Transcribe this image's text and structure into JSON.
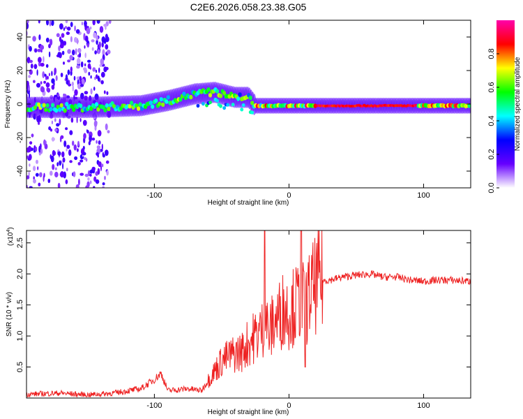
{
  "title": "C2E6.2026.058.23.38.G05",
  "chart_data": [
    {
      "type": "heatmap",
      "xlabel": "Height of straight line (km)",
      "ylabel": "Frequency (Hz)",
      "xlim": [
        -195,
        135
      ],
      "ylim": [
        -50,
        50
      ],
      "xticks": [
        -100,
        0,
        100
      ],
      "xtick_labels": [
        "-100",
        "0",
        "100"
      ],
      "yticks": [
        -40,
        -20,
        0,
        20,
        40
      ],
      "ytick_labels": [
        "-40",
        "-20",
        "0",
        "20",
        "40"
      ],
      "ridge": [
        {
          "x": -195,
          "y": -2
        },
        {
          "x": -150,
          "y": -2
        },
        {
          "x": -110,
          "y": -1
        },
        {
          "x": -90,
          "y": 2
        },
        {
          "x": -70,
          "y": 6
        },
        {
          "x": -55,
          "y": 7
        },
        {
          "x": -40,
          "y": 4
        },
        {
          "x": -30,
          "y": 4
        },
        {
          "x": -25,
          "y": -1
        },
        {
          "x": 0,
          "y": -1
        },
        {
          "x": 60,
          "y": -1
        },
        {
          "x": 135,
          "y": -1
        }
      ],
      "colorbar": {
        "label": "Normalized spectral amplitude",
        "ticks": [
          0.0,
          0.2,
          0.4,
          0.6,
          0.8
        ],
        "tick_labels": [
          "0.0",
          "0.2",
          "0.4",
          "0.6",
          "0.8"
        ],
        "colors": [
          "#ffffff",
          "#6600ff",
          "#0000ff",
          "#00ffff",
          "#00ff00",
          "#ffff00",
          "#ff0000",
          "#ff00aa"
        ]
      }
    },
    {
      "type": "line",
      "xlabel": "Height of straight line (km)",
      "ylabel": "SNR (10 * v/v)",
      "y_multiplier": "(x10",
      "y_multiplier_exp": "4",
      "y_multiplier_close": ")",
      "xlim": [
        -195,
        135
      ],
      "ylim": [
        0,
        2.7
      ],
      "xticks": [
        -100,
        0,
        100
      ],
      "xtick_labels": [
        "-100",
        "0",
        "100"
      ],
      "yticks": [
        0.5,
        1.0,
        1.5,
        2.0,
        2.5
      ],
      "ytick_labels": [
        "0.5",
        "1.0",
        "1.5",
        "2.0",
        "2.5"
      ],
      "color": "#ee2222",
      "series": [
        {
          "name": "SNR",
          "x": [
            -195,
            -170,
            -150,
            -130,
            -110,
            -100,
            -95,
            -90,
            -75,
            -65,
            -58,
            -50,
            -42,
            -35,
            -30,
            -25,
            -20,
            -17,
            -15,
            -12,
            -8,
            -4,
            0,
            5,
            9,
            12,
            16,
            22,
            30,
            40,
            50,
            60,
            70,
            80,
            90,
            100,
            110,
            120,
            135
          ],
          "values": [
            0.06,
            0.08,
            0.05,
            0.08,
            0.15,
            0.3,
            0.4,
            0.12,
            0.15,
            0.12,
            0.35,
            0.6,
            0.7,
            0.75,
            0.9,
            1.0,
            1.1,
            1.3,
            1.0,
            1.2,
            1.3,
            1.45,
            1.4,
            1.5,
            1.6,
            1.45,
            1.7,
            1.88,
            1.9,
            1.95,
            1.98,
            2.0,
            1.95,
            1.95,
            1.9,
            1.88,
            1.9,
            1.9,
            1.88
          ]
        },
        {
          "name": "spikes",
          "x": [
            -18,
            9,
            12
          ],
          "values": [
            2.7,
            2.7,
            0.5
          ]
        }
      ]
    }
  ]
}
